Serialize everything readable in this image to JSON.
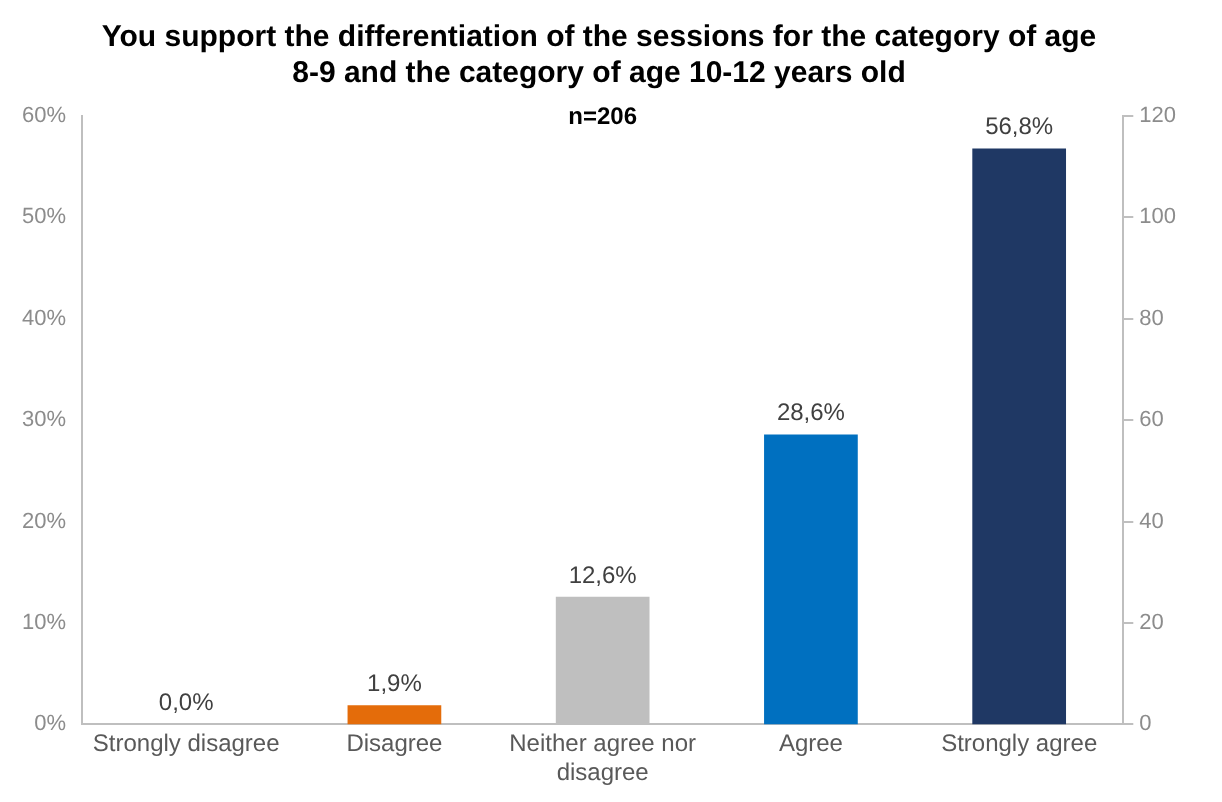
{
  "chart_data": {
    "type": "bar",
    "title": "You support the differentiation of the sessions for the category of age 8-9 and the category of age 10-12 years old",
    "annotations": [
      "n=206"
    ],
    "categories": [
      "Strongly disagree",
      "Disagree",
      "Neither agree nor disagree",
      "Agree",
      "Strongly agree"
    ],
    "values": [
      0.0,
      1.9,
      12.6,
      28.6,
      56.8
    ],
    "colors": [
      "#e46c0a",
      "#e46c0a",
      "#bfbfbf",
      "#0070c0",
      "#1f3864"
    ],
    "value_labels": [
      "0,0%",
      "1,9%",
      "12,6%",
      "28,6%",
      "56,8%"
    ],
    "ylim": [
      0,
      60
    ],
    "yticks": [
      {
        "value": 0,
        "label": "0%"
      },
      {
        "value": 10,
        "label": "10%"
      },
      {
        "value": 20,
        "label": "20%"
      },
      {
        "value": 30,
        "label": "30%"
      },
      {
        "value": 40,
        "label": "40%"
      },
      {
        "value": 50,
        "label": "50%"
      },
      {
        "value": 60,
        "label": "60%"
      }
    ],
    "y2lim": [
      0,
      120
    ],
    "y2ticks": [
      0,
      20,
      40,
      60,
      80,
      100,
      120
    ],
    "grid": false,
    "legend": false
  }
}
